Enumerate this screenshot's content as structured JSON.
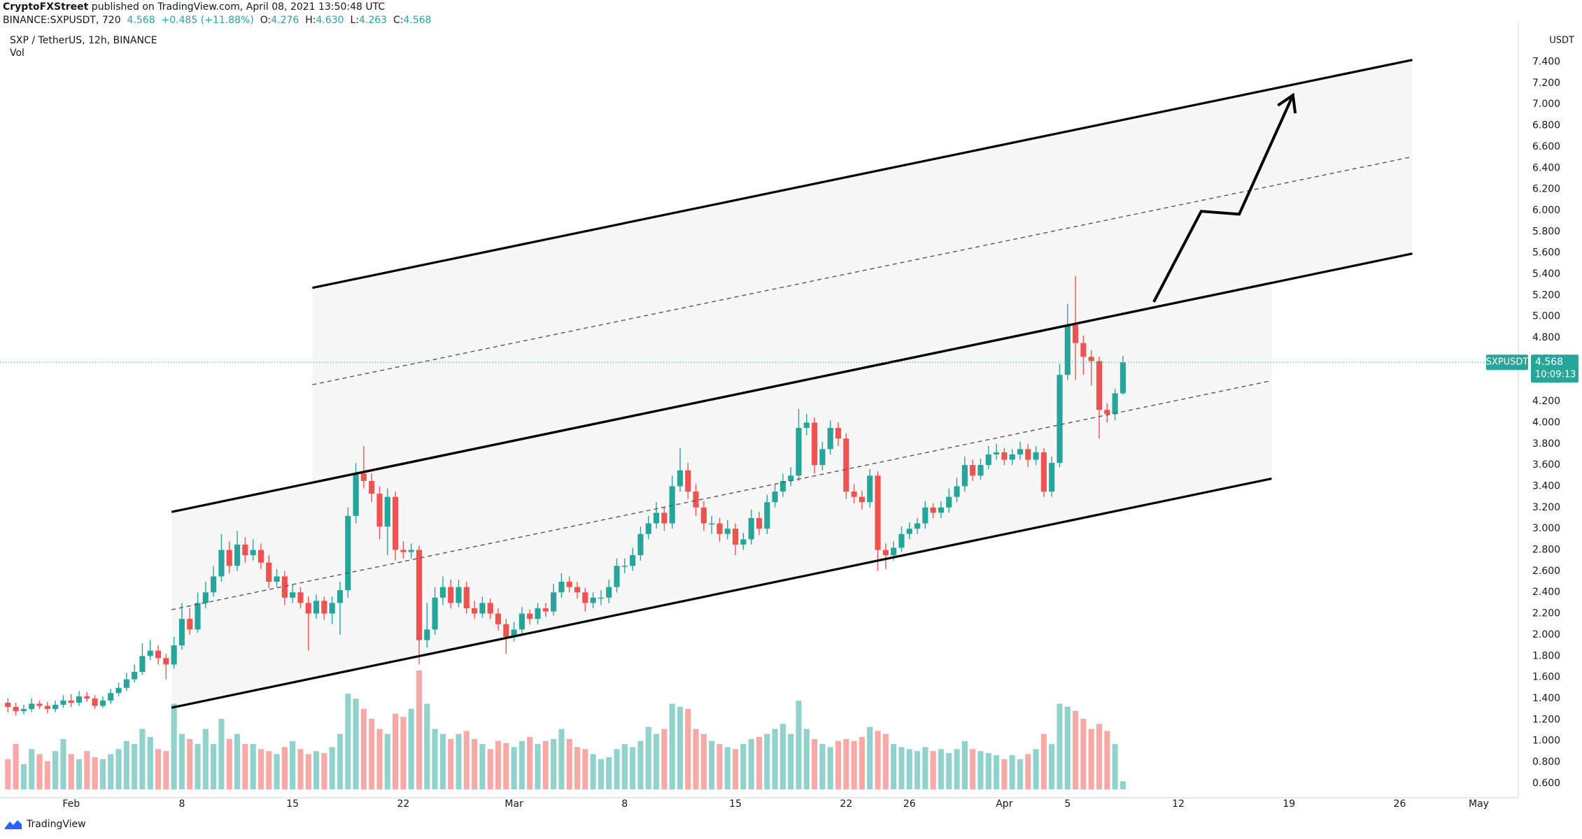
{
  "header": {
    "author": "CryptoFXStreet",
    "published": " published on TradingView.com, April 08, 2021 13:50:48 UTC",
    "symbol": "BINANCE:SXPUSDT, 720",
    "last": "4.568",
    "change": "+0.485 (+11.88%)",
    "ohlc": [
      {
        "label": "O:",
        "value": "4.276"
      },
      {
        "label": "H:",
        "value": "4.630"
      },
      {
        "label": "L:",
        "value": "4.263"
      },
      {
        "label": "C:",
        "value": "4.568"
      }
    ]
  },
  "footer": {
    "brand": "TradingView"
  },
  "chart_data": {
    "type": "candlestick",
    "title": "SXP / TetherUS, 12h, BINANCE",
    "volume_label": "Vol",
    "symbol": "SXPUSDT",
    "countdown": "10:09:13",
    "y_unit": "USDT",
    "up_color": "#26a69a",
    "down_color": "#ef5350",
    "grid": false,
    "xlim": [
      -1,
      191
    ],
    "xticks": [
      {
        "value": 8,
        "label": "Feb"
      },
      {
        "value": 22,
        "label": "8"
      },
      {
        "value": 36,
        "label": "15"
      },
      {
        "value": 50,
        "label": "22"
      },
      {
        "value": 64,
        "label": "Mar"
      },
      {
        "value": 78,
        "label": "8"
      },
      {
        "value": 92,
        "label": "15"
      },
      {
        "value": 106,
        "label": "22"
      },
      {
        "value": 114,
        "label": "26"
      },
      {
        "value": 126,
        "label": "Apr"
      },
      {
        "value": 134,
        "label": "5"
      },
      {
        "value": 148,
        "label": "12"
      },
      {
        "value": 162,
        "label": "19"
      },
      {
        "value": 176,
        "label": "26"
      },
      {
        "value": 186,
        "label": "May"
      }
    ],
    "ylim": [
      0.477,
      7.7
    ],
    "yticks": [
      {
        "value": 0.6,
        "label": "0.600"
      },
      {
        "value": 0.8,
        "label": "0.800"
      },
      {
        "value": 1.0,
        "label": "1.000"
      },
      {
        "value": 1.2,
        "label": "1.200"
      },
      {
        "value": 1.4,
        "label": "1.400"
      },
      {
        "value": 1.6,
        "label": "1.600"
      },
      {
        "value": 1.8,
        "label": "1.800"
      },
      {
        "value": 2.0,
        "label": "2.000"
      },
      {
        "value": 2.2,
        "label": "2.200"
      },
      {
        "value": 2.4,
        "label": "2.400"
      },
      {
        "value": 2.6,
        "label": "2.600"
      },
      {
        "value": 2.8,
        "label": "2.800"
      },
      {
        "value": 3.0,
        "label": "3.000"
      },
      {
        "value": 3.2,
        "label": "3.200"
      },
      {
        "value": 3.4,
        "label": "3.400"
      },
      {
        "value": 3.6,
        "label": "3.600"
      },
      {
        "value": 3.8,
        "label": "3.800"
      },
      {
        "value": 4.0,
        "label": "4.000"
      },
      {
        "value": 4.2,
        "label": "4.200"
      },
      {
        "value": 4.4,
        "label": "4.400"
      },
      {
        "value": 4.6,
        "label": "4.600"
      },
      {
        "value": 4.8,
        "label": "4.800"
      },
      {
        "value": 5.0,
        "label": "5.000"
      },
      {
        "value": 5.2,
        "label": "5.200"
      },
      {
        "value": 5.4,
        "label": "5.400"
      },
      {
        "value": 5.6,
        "label": "5.600"
      },
      {
        "value": 5.8,
        "label": "5.800"
      },
      {
        "value": 6.0,
        "label": "6.000"
      },
      {
        "value": 6.2,
        "label": "6.200"
      },
      {
        "value": 6.4,
        "label": "6.400"
      },
      {
        "value": 6.6,
        "label": "6.600"
      },
      {
        "value": 6.8,
        "label": "6.800"
      },
      {
        "value": 7.0,
        "label": "7.000"
      },
      {
        "value": 7.2,
        "label": "7.200"
      },
      {
        "value": 7.4,
        "label": "7.400"
      }
    ],
    "open": [
      1.36,
      1.32,
      1.28,
      1.3,
      1.35,
      1.33,
      1.3,
      1.34,
      1.38,
      1.36,
      1.42,
      1.4,
      1.33,
      1.38,
      1.45,
      1.5,
      1.58,
      1.65,
      1.8,
      1.85,
      1.78,
      1.72,
      1.9,
      2.15,
      2.05,
      2.3,
      2.4,
      2.55,
      2.8,
      2.65,
      2.85,
      2.75,
      2.8,
      2.68,
      2.5,
      2.55,
      2.35,
      2.4,
      2.3,
      2.2,
      2.32,
      2.2,
      2.3,
      2.42,
      3.12,
      3.52,
      3.45,
      3.33,
      3.02,
      3.3,
      2.8,
      2.78,
      2.8,
      1.95,
      2.05,
      2.35,
      2.45,
      2.3,
      2.45,
      2.25,
      2.2,
      2.3,
      2.2,
      2.1,
      1.98,
      2.05,
      2.2,
      2.15,
      2.25,
      2.22,
      2.4,
      2.5,
      2.45,
      2.4,
      2.3,
      2.35,
      2.35,
      2.45,
      2.65,
      2.65,
      2.75,
      2.95,
      3.05,
      3.15,
      3.05,
      3.4,
      3.55,
      3.35,
      3.2,
      3.05,
      3.05,
      2.95,
      3.0,
      2.85,
      2.9,
      3.1,
      3.0,
      3.25,
      3.35,
      3.45,
      3.5,
      3.95,
      4.0,
      3.6,
      3.75,
      3.95,
      3.85,
      3.35,
      3.3,
      3.25,
      3.5,
      2.8,
      2.75,
      2.82,
      2.95,
      3.0,
      3.05,
      3.2,
      3.15,
      3.2,
      3.3,
      3.4,
      3.6,
      3.5,
      3.6,
      3.7,
      3.72,
      3.65,
      3.7,
      3.75,
      3.65,
      3.72,
      3.35,
      3.62,
      4.45,
      4.92,
      4.75,
      4.62,
      4.58,
      4.12,
      4.08,
      4.276
    ],
    "high": [
      1.4,
      1.36,
      1.34,
      1.4,
      1.38,
      1.37,
      1.38,
      1.43,
      1.44,
      1.47,
      1.46,
      1.43,
      1.42,
      1.49,
      1.55,
      1.64,
      1.72,
      1.92,
      1.95,
      1.9,
      1.82,
      1.98,
      2.3,
      2.25,
      2.4,
      2.5,
      2.65,
      2.95,
      2.88,
      2.98,
      2.92,
      2.9,
      2.86,
      2.75,
      2.62,
      2.6,
      2.48,
      2.45,
      2.36,
      2.38,
      2.36,
      2.36,
      2.5,
      3.2,
      3.62,
      3.78,
      3.52,
      3.4,
      3.38,
      3.35,
      2.88,
      2.86,
      2.84,
      2.3,
      2.45,
      2.55,
      2.52,
      2.52,
      2.5,
      2.32,
      2.36,
      2.34,
      2.25,
      2.15,
      2.12,
      2.26,
      2.24,
      2.3,
      2.3,
      2.48,
      2.58,
      2.55,
      2.5,
      2.44,
      2.4,
      2.42,
      2.52,
      2.72,
      2.72,
      2.82,
      3.02,
      3.12,
      3.25,
      3.2,
      3.5,
      3.76,
      3.62,
      3.42,
      3.26,
      3.12,
      3.1,
      3.08,
      3.05,
      2.96,
      3.18,
      3.16,
      3.32,
      3.42,
      3.52,
      3.58,
      4.13,
      4.08,
      4.05,
      3.82,
      4.02,
      4.0,
      3.9,
      3.42,
      3.36,
      3.56,
      3.54,
      2.86,
      2.88,
      3.02,
      3.06,
      3.1,
      3.26,
      3.24,
      3.26,
      3.38,
      3.48,
      3.68,
      3.65,
      3.66,
      3.78,
      3.8,
      3.76,
      3.75,
      3.82,
      3.8,
      3.78,
      3.76,
      3.68,
      4.55,
      5.12,
      5.38,
      4.82,
      4.68,
      4.62,
      4.18,
      4.32,
      4.63
    ],
    "low": [
      1.27,
      1.24,
      1.25,
      1.27,
      1.3,
      1.26,
      1.27,
      1.31,
      1.32,
      1.33,
      1.37,
      1.3,
      1.31,
      1.35,
      1.42,
      1.47,
      1.55,
      1.62,
      1.76,
      1.72,
      1.58,
      1.68,
      1.86,
      2.0,
      2.02,
      2.25,
      2.36,
      2.5,
      2.58,
      2.6,
      2.68,
      2.7,
      2.62,
      2.44,
      2.45,
      2.28,
      2.3,
      2.25,
      1.85,
      2.15,
      2.14,
      2.1,
      2.0,
      2.35,
      3.05,
      3.38,
      3.25,
      2.9,
      2.75,
      2.7,
      2.72,
      2.72,
      1.72,
      1.88,
      2.0,
      2.28,
      2.25,
      2.26,
      2.2,
      2.15,
      2.16,
      2.15,
      2.04,
      1.82,
      1.94,
      2.0,
      2.1,
      2.1,
      2.17,
      2.18,
      2.35,
      2.4,
      2.34,
      2.22,
      2.25,
      2.28,
      2.3,
      2.4,
      2.58,
      2.6,
      2.7,
      2.9,
      3.0,
      2.98,
      3.0,
      3.35,
      3.28,
      3.12,
      2.98,
      2.95,
      2.88,
      2.9,
      2.75,
      2.8,
      2.85,
      2.94,
      2.95,
      3.2,
      3.3,
      3.4,
      3.45,
      3.88,
      3.52,
      3.55,
      3.7,
      3.78,
      3.28,
      3.24,
      3.18,
      3.2,
      2.6,
      2.62,
      2.7,
      2.78,
      2.9,
      2.95,
      3.0,
      3.1,
      3.1,
      3.15,
      3.25,
      3.35,
      3.45,
      3.46,
      3.56,
      3.65,
      3.6,
      3.6,
      3.65,
      3.58,
      3.6,
      3.3,
      3.3,
      3.58,
      4.4,
      4.4,
      4.45,
      4.35,
      3.85,
      4.0,
      4.02,
      4.263
    ],
    "close": [
      1.32,
      1.28,
      1.3,
      1.35,
      1.33,
      1.3,
      1.34,
      1.38,
      1.36,
      1.42,
      1.4,
      1.33,
      1.38,
      1.45,
      1.5,
      1.58,
      1.65,
      1.8,
      1.85,
      1.78,
      1.72,
      1.9,
      2.15,
      2.05,
      2.3,
      2.4,
      2.55,
      2.8,
      2.65,
      2.85,
      2.75,
      2.8,
      2.68,
      2.5,
      2.55,
      2.35,
      2.4,
      2.3,
      2.2,
      2.32,
      2.2,
      2.3,
      2.42,
      3.12,
      3.52,
      3.45,
      3.33,
      3.02,
      3.3,
      2.8,
      2.78,
      2.8,
      1.95,
      2.05,
      2.35,
      2.45,
      2.3,
      2.45,
      2.25,
      2.2,
      2.3,
      2.2,
      2.1,
      1.98,
      2.05,
      2.2,
      2.15,
      2.25,
      2.22,
      2.4,
      2.5,
      2.45,
      2.4,
      2.3,
      2.35,
      2.35,
      2.45,
      2.65,
      2.65,
      2.75,
      2.95,
      3.05,
      3.15,
      3.05,
      3.4,
      3.55,
      3.35,
      3.2,
      3.05,
      3.05,
      2.95,
      3.0,
      2.85,
      2.9,
      3.1,
      3.0,
      3.25,
      3.35,
      3.45,
      3.5,
      3.95,
      4.0,
      3.6,
      3.75,
      3.95,
      3.85,
      3.35,
      3.3,
      3.25,
      3.5,
      2.8,
      2.75,
      2.82,
      2.95,
      3.0,
      3.05,
      3.2,
      3.15,
      3.2,
      3.3,
      3.4,
      3.6,
      3.5,
      3.6,
      3.7,
      3.72,
      3.65,
      3.7,
      3.75,
      3.65,
      3.72,
      3.35,
      3.62,
      4.45,
      4.92,
      4.75,
      4.62,
      4.58,
      4.12,
      4.08,
      4.276,
      4.568
    ],
    "volume": [
      30,
      45,
      25,
      40,
      35,
      28,
      38,
      50,
      35,
      30,
      38,
      32,
      30,
      35,
      40,
      48,
      45,
      60,
      52,
      40,
      38,
      85,
      55,
      50,
      45,
      60,
      45,
      70,
      50,
      55,
      45,
      45,
      40,
      38,
      35,
      42,
      48,
      40,
      35,
      38,
      36,
      42,
      55,
      95,
      90,
      80,
      70,
      60,
      55,
      75,
      72,
      80,
      118,
      85,
      60,
      55,
      50,
      55,
      58,
      50,
      45,
      40,
      48,
      46,
      42,
      48,
      52,
      45,
      48,
      50,
      60,
      50,
      42,
      40,
      35,
      30,
      32,
      40,
      45,
      42,
      48,
      62,
      55,
      60,
      85,
      82,
      80,
      60,
      55,
      48,
      45,
      42,
      40,
      45,
      50,
      52,
      55,
      60,
      65,
      55,
      88,
      60,
      50,
      45,
      42,
      48,
      50,
      48,
      52,
      62,
      58,
      55,
      45,
      42,
      40,
      38,
      42,
      38,
      40,
      36,
      40,
      48,
      40,
      38,
      36,
      34,
      30,
      34,
      30,
      35,
      40,
      55,
      45,
      85,
      82,
      78,
      70,
      60,
      65,
      58,
      45,
      8
    ],
    "channels": [
      {
        "x": [
          20.7,
          159.8
        ],
        "upper": [
          3.158,
          5.317
        ],
        "middle": [
          2.236,
          4.395
        ],
        "lower": [
          1.313,
          3.472
        ]
      },
      {
        "x": [
          38.5,
          177.6
        ],
        "upper": [
          5.27,
          7.419
        ],
        "middle": [
          4.357,
          6.506
        ],
        "lower": [
          3.434,
          5.593
        ]
      }
    ],
    "arrow": {
      "x": [
        144.9,
        150.9,
        155.7,
        162.5
      ],
      "y": [
        5.137,
        5.992,
        5.964,
        7.086
      ]
    }
  }
}
